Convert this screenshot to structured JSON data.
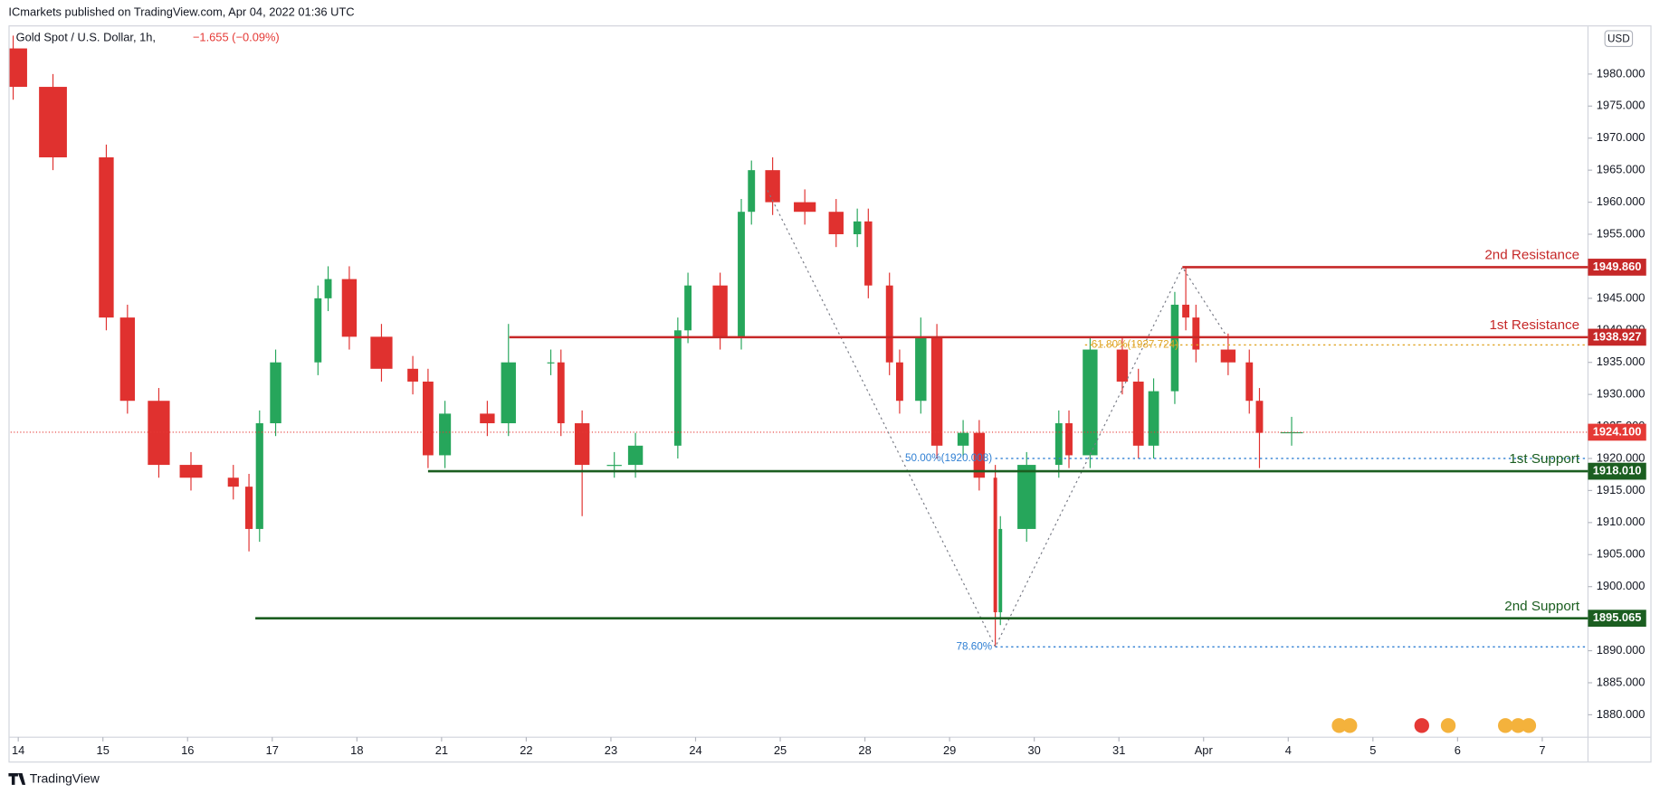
{
  "page_header": "ICmarkets published on TradingView.com, Apr 04, 2022 01:36 UTC",
  "footer": "TradingView",
  "chart_data": {
    "type": "candlestick",
    "title": "Gold Spot / U.S. Dollar, 1h,",
    "change": "−1.655 (−0.09%)",
    "currency": "USD",
    "up_color": "#26a65b",
    "down_color": "#e0312f",
    "x": [
      -0.06,
      0.41,
      1.04,
      1.29,
      1.66,
      2.04,
      2.54,
      2.725,
      2.85,
      3.04,
      3.54,
      3.66,
      3.91,
      4.29,
      4.66,
      4.84,
      5.04,
      5.54,
      5.79,
      6.29,
      6.41,
      6.66,
      7.04,
      7.29,
      7.79,
      7.91,
      8.29,
      8.54,
      8.66,
      8.91,
      9.29,
      9.66,
      9.91,
      10.04,
      10.29,
      10.41,
      10.66,
      10.85,
      11.16,
      11.35,
      11.54,
      11.6,
      11.91,
      12.29,
      12.41,
      12.66,
      13.04,
      13.23,
      13.41,
      13.66,
      13.79,
      13.91,
      14.29,
      14.54,
      14.66,
      15.04
    ],
    "open": [
      1984,
      1978,
      1967,
      1942,
      1929,
      1919,
      1917,
      1915.6,
      1909,
      1925.5,
      1935,
      1945,
      1948,
      1939,
      1934,
      1932,
      1920.5,
      1927,
      1925.5,
      1935,
      1935,
      1925.5,
      1919,
      1919,
      1922,
      1940,
      1947,
      1939,
      1958.5,
      1965,
      1960,
      1958.5,
      1955,
      1957,
      1947,
      1935,
      1929,
      1939,
      1922,
      1924,
      1917,
      1896,
      1909,
      1919,
      1925.5,
      1920.5,
      1937,
      1932,
      1922,
      1930.5,
      1944,
      1942,
      1937,
      1935,
      1929,
      1924
    ],
    "high": [
      1986,
      1980,
      1969,
      1944,
      1931,
      1921,
      1919,
      1917.6,
      1927.5,
      1937,
      1947,
      1950,
      1950,
      1941,
      1936,
      1934,
      1929,
      1929,
      1941,
      1937,
      1937,
      1927.5,
      1921,
      1924,
      1942,
      1949,
      1949,
      1960.5,
      1966.5,
      1967,
      1962,
      1960.5,
      1959,
      1959,
      1949,
      1937,
      1942,
      1941,
      1926,
      1926,
      1919,
      1911,
      1921,
      1927.5,
      1927.5,
      1939,
      1939,
      1934,
      1932.5,
      1946,
      1949.86,
      1944,
      1939.5,
      1937,
      1931,
      1926.5
    ],
    "low": [
      1976,
      1965,
      1940,
      1927,
      1917,
      1915,
      1913.6,
      1905.5,
      1907,
      1923.5,
      1933,
      1943,
      1937,
      1932,
      1930,
      1918.5,
      1918.5,
      1923.5,
      1923.5,
      1933,
      1923.5,
      1911,
      1917,
      1917,
      1920,
      1938,
      1937,
      1937,
      1956.5,
      1958,
      1956.5,
      1953,
      1953,
      1945,
      1933,
      1927,
      1927,
      1920,
      1920,
      1915,
      1890.6,
      1894,
      1907,
      1917,
      1918.5,
      1918.5,
      1930,
      1920,
      1920,
      1928.5,
      1940,
      1935,
      1933,
      1927,
      1918.5,
      1922
    ],
    "close": [
      1978,
      1967,
      1942,
      1929,
      1919,
      1917,
      1915.6,
      1909,
      1925.5,
      1935,
      1945,
      1948,
      1939,
      1934,
      1932,
      1920.5,
      1927,
      1925.5,
      1935,
      1935,
      1925.5,
      1919,
      1919,
      1922,
      1940,
      1947,
      1939,
      1958.5,
      1965,
      1960,
      1958.5,
      1955,
      1957,
      1947,
      1935,
      1929,
      1939,
      1922,
      1924,
      1917,
      1896,
      1909,
      1919,
      1925.5,
      1920.5,
      1937,
      1932,
      1922,
      1930.5,
      1944,
      1942,
      1937,
      1935,
      1929,
      1924,
      1924.1
    ],
    "xlim": [
      -0.09,
      18.54
    ],
    "xticks": [
      {
        "value": 0,
        "label": "14"
      },
      {
        "value": 1,
        "label": "15"
      },
      {
        "value": 2,
        "label": "16"
      },
      {
        "value": 3,
        "label": "17"
      },
      {
        "value": 4,
        "label": "18"
      },
      {
        "value": 5,
        "label": "21"
      },
      {
        "value": 6,
        "label": "22"
      },
      {
        "value": 7,
        "label": "23"
      },
      {
        "value": 8,
        "label": "24"
      },
      {
        "value": 9,
        "label": "25"
      },
      {
        "value": 10,
        "label": "28"
      },
      {
        "value": 11,
        "label": "29"
      },
      {
        "value": 12,
        "label": "30"
      },
      {
        "value": 13,
        "label": "31"
      },
      {
        "value": 14,
        "label": "Apr"
      },
      {
        "value": 15,
        "label": "4"
      },
      {
        "value": 16,
        "label": "5"
      },
      {
        "value": 17,
        "label": "6"
      },
      {
        "value": 18,
        "label": "7"
      }
    ],
    "ylim": [
      1876.5,
      1987.1
    ],
    "yticks": [
      {
        "value": 1880,
        "label": "1880.000"
      },
      {
        "value": 1885,
        "label": "1885.000"
      },
      {
        "value": 1890,
        "label": "1890.000"
      },
      {
        "value": 1895,
        "label": "1895.000"
      },
      {
        "value": 1900,
        "label": "1900.000"
      },
      {
        "value": 1905,
        "label": "1905.000"
      },
      {
        "value": 1910,
        "label": "1910.000"
      },
      {
        "value": 1915,
        "label": "1915.000"
      },
      {
        "value": 1920,
        "label": "1920.000"
      },
      {
        "value": 1925,
        "label": "1925.000"
      },
      {
        "value": 1930,
        "label": "1930.000"
      },
      {
        "value": 1935,
        "label": "1935.000"
      },
      {
        "value": 1940,
        "label": "1940.000"
      },
      {
        "value": 1945,
        "label": "1945.000"
      },
      {
        "value": 1950,
        "label": "1950.000"
      },
      {
        "value": 1955,
        "label": "1955.000"
      },
      {
        "value": 1960,
        "label": "1960.000"
      },
      {
        "value": 1965,
        "label": "1965.000"
      },
      {
        "value": 1970,
        "label": "1970.000"
      },
      {
        "value": 1975,
        "label": "1975.000"
      },
      {
        "value": 1980,
        "label": "1980.000"
      }
    ],
    "levels": [
      {
        "name": "2nd Resistance",
        "value": 1949.86,
        "value_label": "1949.860",
        "color": "#c62828",
        "start": 13.75
      },
      {
        "name": "1st Resistance",
        "value": 1938.927,
        "value_label": "1938.927",
        "color": "#c62828",
        "start": 5.8
      },
      {
        "name": "1st Support",
        "value": 1918.01,
        "value_label": "1918.010",
        "color": "#1b5e20",
        "start": 4.84
      },
      {
        "name": "2nd Support",
        "value": 1895.065,
        "value_label": "1895.065",
        "color": "#1b5e20",
        "start": 2.8
      }
    ],
    "last_price": {
      "value": 1924.1,
      "label": "1924.100",
      "color": "#e53935"
    },
    "fib": {
      "path_x": [
        8.85,
        11.54,
        13.75,
        14.3
      ],
      "path_y": [
        1961.85,
        1890.6,
        1949.86,
        1938.5
      ],
      "levels": [
        {
          "label": "61.80%(1937.724)",
          "value": 1937.724,
          "start": 12.6,
          "color": "#e0a526"
        },
        {
          "label": "50.00%(1920.008)",
          "value": 1920.008,
          "start": 11.54,
          "color": "#2f7fd3"
        },
        {
          "label": "78.60%",
          "value": 1890.6,
          "start": 11.54,
          "color": "#2f7fd3"
        }
      ]
    }
  }
}
